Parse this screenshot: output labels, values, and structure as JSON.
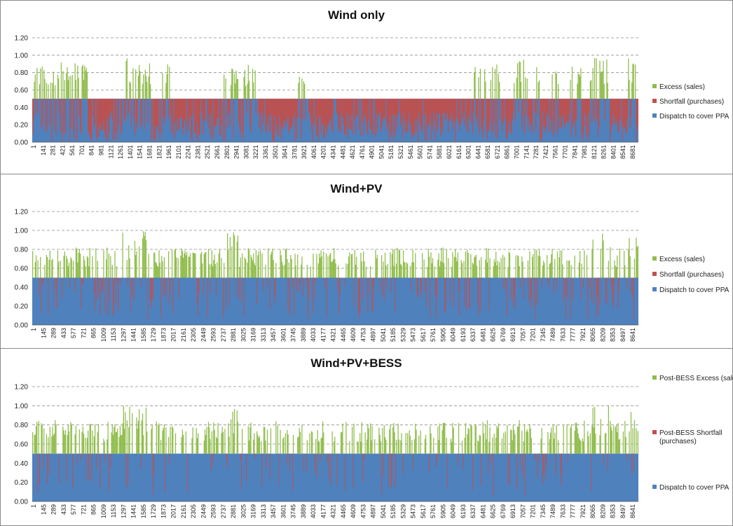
{
  "colors": {
    "excess": "#8FBC4A",
    "shortfall": "#C0504D",
    "dispatch": "#4F81BD",
    "grid": "#8c8c8c"
  },
  "chart_data": [
    {
      "type": "bar",
      "stacked": true,
      "title": "Wind only",
      "ylim": [
        0,
        1.2
      ],
      "yticks": [
        "0.00",
        "0.20",
        "0.40",
        "0.60",
        "0.80",
        "1.00",
        "1.20"
      ],
      "grid": "horizontal dashed",
      "legend_position": "right",
      "x_range": [
        1,
        8760
      ],
      "xtick_labels": [
        "1",
        "141",
        "281",
        "421",
        "561",
        "701",
        "841",
        "981",
        "1121",
        "1261",
        "1401",
        "1541",
        "1681",
        "1821",
        "1961",
        "2101",
        "2241",
        "2381",
        "2521",
        "2661",
        "2801",
        "2941",
        "3081",
        "3221",
        "3361",
        "3501",
        "3641",
        "3781",
        "3921",
        "4061",
        "4201",
        "4341",
        "4481",
        "4621",
        "4761",
        "4901",
        "5041",
        "5181",
        "5321",
        "5461",
        "5601",
        "5741",
        "5881",
        "6021",
        "6161",
        "6301",
        "6441",
        "6581",
        "6721",
        "6861",
        "7001",
        "7141",
        "7281",
        "7421",
        "7561",
        "7701",
        "7841",
        "7981",
        "8121",
        "8261",
        "8401",
        "8541",
        "8681"
      ],
      "series": [
        {
          "name": "Excess (sales)",
          "value_range": [
            0.5,
            0.98
          ]
        },
        {
          "name": "Shortfall (purchases)",
          "value_range": [
            0,
            0.5
          ]
        },
        {
          "name": "Dispatch to cover PPA",
          "cap": 0.5
        }
      ],
      "legend_lines": [
        [
          "Excess (sales)"
        ],
        [
          "Shortfall (purchases)"
        ],
        [
          "Dispatch to cover PPA"
        ]
      ],
      "windows": [
        [
          20,
          800,
          0.92
        ],
        [
          1350,
          1720,
          0.97
        ],
        [
          1880,
          2000,
          0.9
        ],
        [
          2760,
          2990,
          0.88
        ],
        [
          3060,
          3230,
          0.92
        ],
        [
          3820,
          3940,
          0.88
        ],
        [
          6380,
          6560,
          0.96
        ],
        [
          6620,
          6760,
          0.92
        ],
        [
          6960,
          7180,
          0.96
        ],
        [
          7260,
          7340,
          0.92
        ],
        [
          7480,
          7640,
          0.9
        ],
        [
          7760,
          7960,
          0.94
        ],
        [
          8050,
          8320,
          0.98
        ],
        [
          8600,
          8760,
          0.97
        ]
      ]
    },
    {
      "type": "bar",
      "stacked": true,
      "title": "Wind+PV",
      "ylim": [
        0,
        1.2
      ],
      "yticks": [
        "0.00",
        "0.20",
        "0.40",
        "0.60",
        "0.80",
        "1.00",
        "1.20"
      ],
      "grid": "horizontal dashed",
      "legend_position": "right",
      "x_range": [
        1,
        8760
      ],
      "xtick_labels": [
        "1",
        "145",
        "289",
        "433",
        "577",
        "721",
        "865",
        "1009",
        "1153",
        "1297",
        "1441",
        "1585",
        "1729",
        "1873",
        "2017",
        "2161",
        "2305",
        "2449",
        "2593",
        "2737",
        "2881",
        "3025",
        "3169",
        "3313",
        "3457",
        "3601",
        "3745",
        "3889",
        "4033",
        "4177",
        "4321",
        "4465",
        "4609",
        "4753",
        "4897",
        "5041",
        "5185",
        "5329",
        "5473",
        "5617",
        "5761",
        "5905",
        "6049",
        "6193",
        "6337",
        "6481",
        "6625",
        "6769",
        "6913",
        "7057",
        "7201",
        "7345",
        "7489",
        "7633",
        "7777",
        "7921",
        "8065",
        "8209",
        "8353",
        "8497",
        "8641"
      ],
      "series": [
        {
          "name": "Excess (sales)",
          "value_range": [
            0.5,
            1.0
          ]
        },
        {
          "name": "Shortfall (purchases)",
          "value_range": [
            0,
            0.5
          ]
        },
        {
          "name": "Dispatch to cover PPA",
          "cap": 0.5
        }
      ],
      "legend_lines": [
        [
          "Excess (sales)"
        ],
        [
          "Shortfall (purchases)"
        ],
        [
          "Dispatch to cover PPA"
        ]
      ],
      "windows": [
        [
          1,
          8760,
          0.82
        ],
        [
          1300,
          1700,
          1.0
        ],
        [
          2820,
          2980,
          1.0
        ],
        [
          8000,
          8360,
          1.0
        ],
        [
          8620,
          8760,
          1.0
        ]
      ]
    },
    {
      "type": "bar",
      "stacked": true,
      "title": "Wind+PV+BESS",
      "ylim": [
        0,
        1.2
      ],
      "yticks": [
        "0.00",
        "0.20",
        "0.40",
        "0.60",
        "0.80",
        "1.00",
        "1.20"
      ],
      "grid": "horizontal dashed",
      "legend_position": "right",
      "x_range": [
        1,
        8760
      ],
      "xtick_labels": [
        "1",
        "145",
        "289",
        "433",
        "577",
        "721",
        "865",
        "1009",
        "1153",
        "1297",
        "1441",
        "1585",
        "1729",
        "1873",
        "2017",
        "2161",
        "2305",
        "2449",
        "2593",
        "2737",
        "2881",
        "3025",
        "3169",
        "3313",
        "3457",
        "3601",
        "3745",
        "3889",
        "4033",
        "4177",
        "4321",
        "4465",
        "4609",
        "4753",
        "4897",
        "5041",
        "5185",
        "5329",
        "5473",
        "5617",
        "5761",
        "5905",
        "6049",
        "6193",
        "6337",
        "6481",
        "6625",
        "6769",
        "6913",
        "7057",
        "7201",
        "7345",
        "7489",
        "7633",
        "7777",
        "7921",
        "8065",
        "8209",
        "8353",
        "8497",
        "8641"
      ],
      "series": [
        {
          "name": "Post-BESS Excess (sales)",
          "value_range": [
            0.5,
            1.0
          ]
        },
        {
          "name": "Post-BESS Shortfall (purchases)",
          "value_range": [
            0,
            0.5
          ]
        },
        {
          "name": "Dispatch to cover PPA",
          "cap": 0.5
        }
      ],
      "legend_lines": [
        [
          "Post-BESS Excess (sales)"
        ],
        [
          "Post-BESS Shortfall",
          "(purchases)"
        ],
        [
          "Dispatch to cover PPA"
        ]
      ],
      "windows": [
        [
          1,
          8760,
          0.85
        ],
        [
          1300,
          1700,
          1.0
        ],
        [
          2820,
          2980,
          1.0
        ],
        [
          8000,
          8360,
          1.0
        ],
        [
          8620,
          8760,
          1.0
        ]
      ]
    }
  ]
}
